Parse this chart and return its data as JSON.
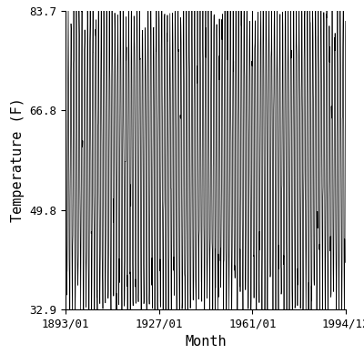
{
  "title": "",
  "xlabel": "Month",
  "ylabel": "Temperature (F)",
  "start_year": 1893,
  "start_month": 1,
  "end_year": 1994,
  "end_month": 12,
  "ylim": [
    32.9,
    83.7
  ],
  "yticks": [
    32.9,
    49.8,
    66.8,
    83.7
  ],
  "xtick_labels": [
    "1893/01",
    "1927/01",
    "1961/01",
    "1994/12"
  ],
  "xtick_years": [
    1893.0,
    1927.0,
    1961.0,
    1994.9167
  ],
  "line_color": "#000000",
  "line_width": 0.5,
  "background_color": "#ffffff",
  "font_family": "monospace",
  "font_size_ticks": 9,
  "font_size_labels": 11
}
